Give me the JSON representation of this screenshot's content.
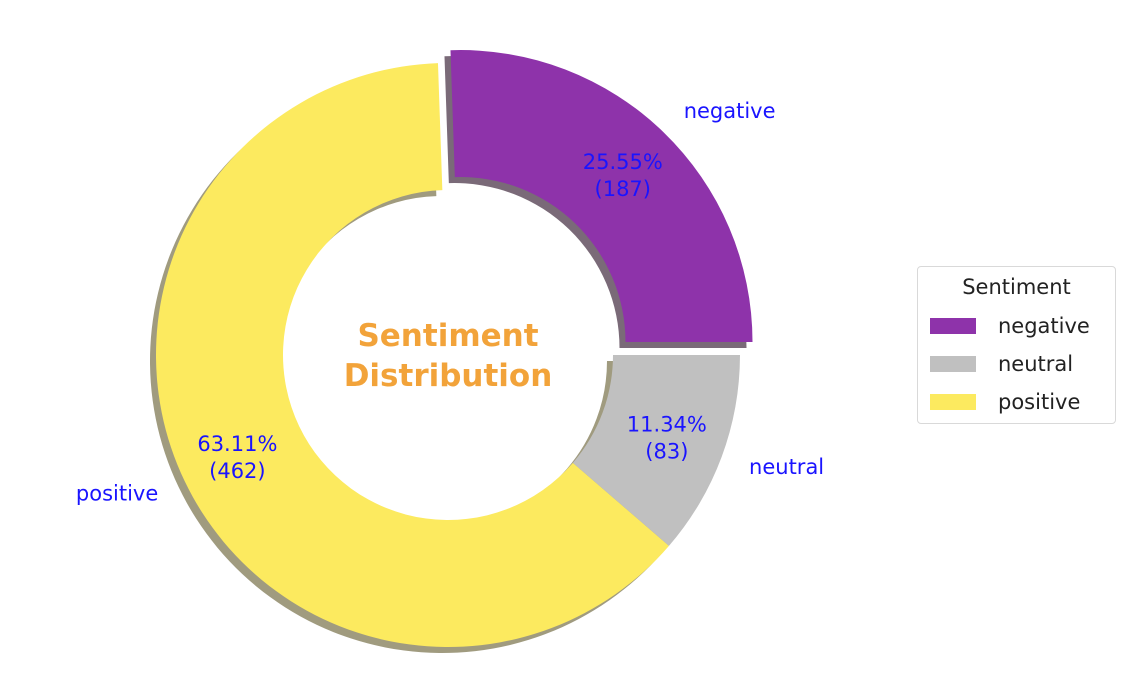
{
  "chart_data": {
    "type": "pie",
    "style": "donut",
    "center_text": [
      "Sentiment",
      "Distribution"
    ],
    "slices": [
      {
        "label": "negative",
        "value": 187,
        "percent": "25.55%",
        "count_text": "(187)",
        "color": "#8e33aa",
        "exploded": true
      },
      {
        "label": "positive",
        "value": 462,
        "percent": "63.11%",
        "count_text": "(462)",
        "color": "#fcea5f",
        "exploded": false
      },
      {
        "label": "neutral",
        "value": 83,
        "percent": "11.34%",
        "count_text": "(83)",
        "color": "#c0c0c0",
        "exploded": false
      }
    ],
    "shadow": true,
    "legend": {
      "title": "Sentiment",
      "placement": "right",
      "items": [
        {
          "label": "negative",
          "color": "#8e33aa"
        },
        {
          "label": "neutral",
          "color": "#c0c0c0"
        },
        {
          "label": "positive",
          "color": "#fcea5f"
        }
      ]
    },
    "colors": {
      "labels": "#1a14ff",
      "center_text": "#f2a33a"
    }
  }
}
